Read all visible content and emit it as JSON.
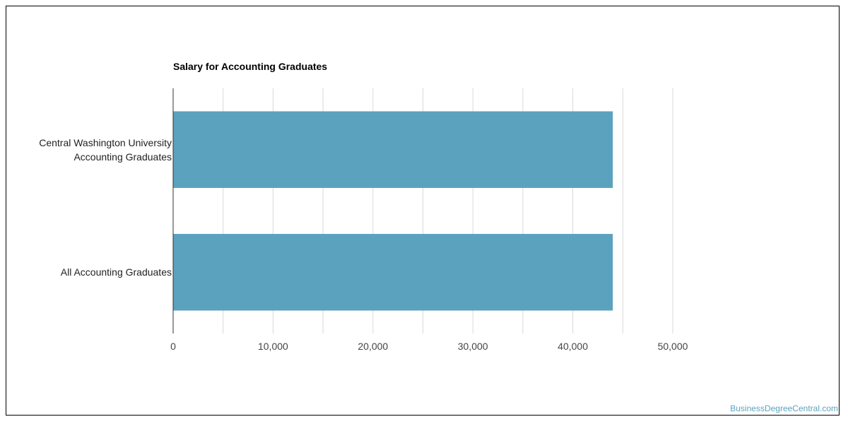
{
  "chart_data": {
    "type": "bar",
    "orientation": "horizontal",
    "title": "Salary for Accounting Graduates",
    "categories": [
      "Central Washington University\nAccounting Graduates",
      "All Accounting Graduates"
    ],
    "values": [
      44000,
      44000
    ],
    "xlim": [
      0,
      50000
    ],
    "ticks": [
      0,
      10000,
      20000,
      30000,
      40000,
      50000
    ],
    "tick_labels": [
      "0",
      "10,000",
      "20,000",
      "30,000",
      "40,000",
      "50,000"
    ],
    "grid": true,
    "bar_color": "#5ba2be",
    "grid_color": "#d9d9d9",
    "axis_color": "#333333"
  },
  "watermark": {
    "text": "BusinessDegreeCentral.com",
    "color": "#5ba2be"
  }
}
